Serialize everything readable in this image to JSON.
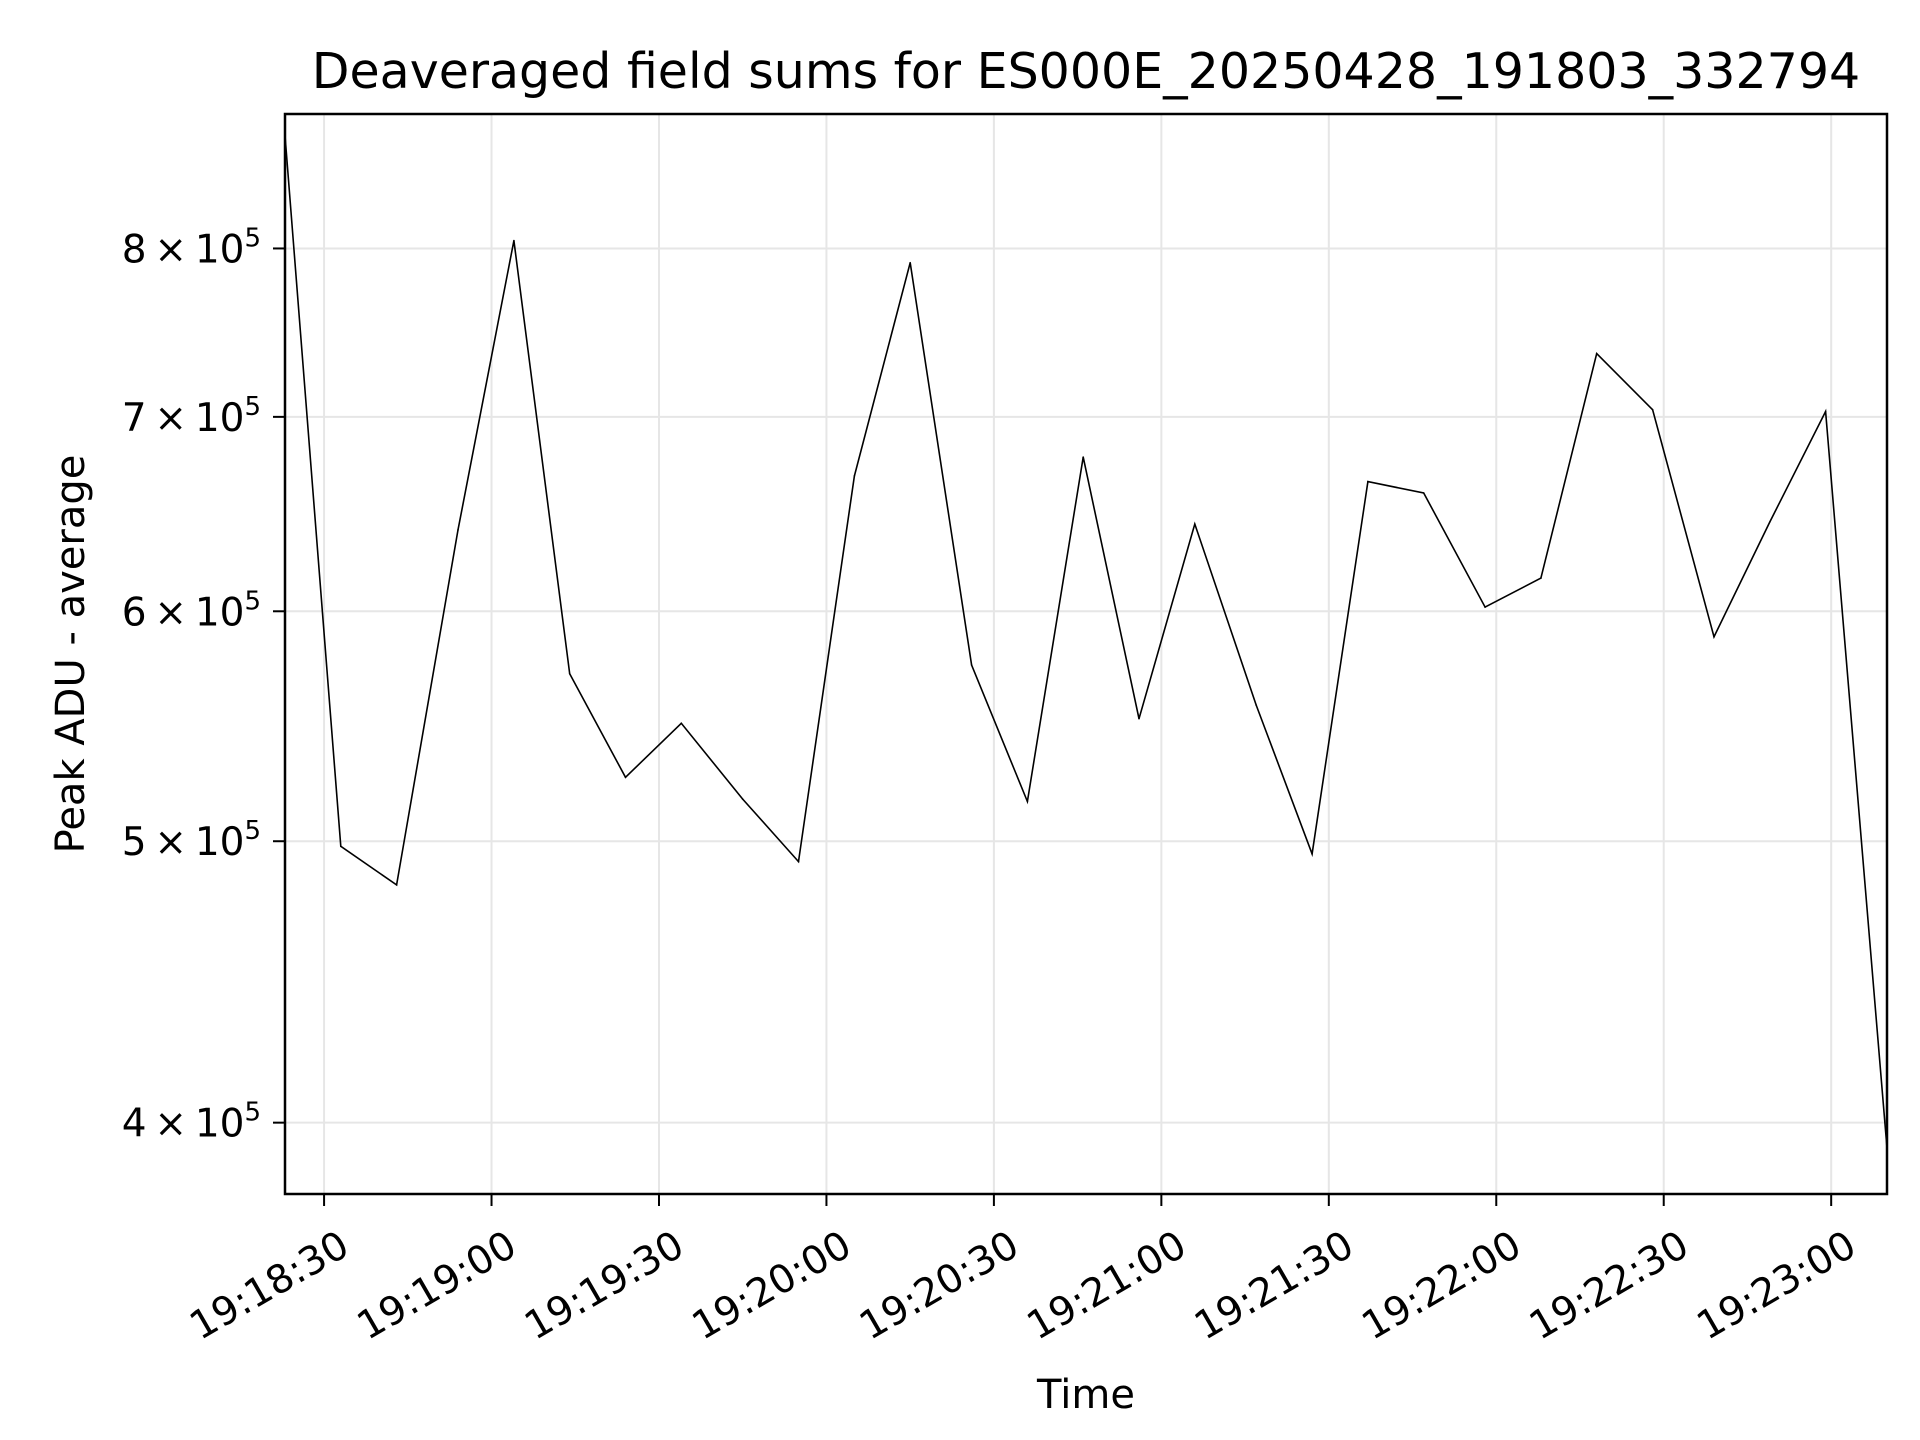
{
  "chart_data": {
    "type": "line",
    "title": "Deaveraged field sums for ES000E_20250428_191803_332794",
    "xlabel": "Time",
    "ylabel": "Peak ADU - average",
    "yscale": "log",
    "grid": true,
    "line_color": "#000000",
    "grid_color": "#e6e6e6",
    "xlim": [
      "19:18:23",
      "19:23:10"
    ],
    "ylim": [
      378000,
      890000
    ],
    "x_ticks": [
      "19:18:30",
      "19:19:00",
      "19:19:30",
      "19:20:00",
      "19:20:30",
      "19:21:00",
      "19:21:30",
      "19:22:00",
      "19:22:30",
      "19:23:00"
    ],
    "y_ticks": [
      {
        "value": 400000,
        "mantissa": "4",
        "base": "10",
        "exp": "5"
      },
      {
        "value": 500000,
        "mantissa": "5",
        "base": "10",
        "exp": "5"
      },
      {
        "value": 600000,
        "mantissa": "6",
        "base": "10",
        "exp": "5"
      },
      {
        "value": 700000,
        "mantissa": "7",
        "base": "10",
        "exp": "5"
      },
      {
        "value": 800000,
        "mantissa": "8",
        "base": "10",
        "exp": "5"
      }
    ],
    "series": [
      {
        "x": [
          "19:18:23",
          "19:18:33",
          "19:18:43",
          "19:18:54",
          "19:19:04",
          "19:19:14",
          "19:19:24",
          "19:19:34",
          "19:19:45",
          "19:19:55",
          "19:20:05",
          "19:20:15",
          "19:20:26",
          "19:20:36",
          "19:20:46",
          "19:20:56",
          "19:21:06",
          "19:21:17",
          "19:21:27",
          "19:21:37",
          "19:21:47",
          "19:21:58",
          "19:22:08",
          "19:22:18",
          "19:22:28",
          "19:22:39",
          "19:22:49",
          "19:22:59",
          "19:23:10"
        ],
        "y": [
          875000,
          498000,
          483000,
          640000,
          805000,
          571000,
          526000,
          549000,
          517000,
          492000,
          668000,
          791000,
          575000,
          516000,
          678000,
          551000,
          643000,
          557000,
          495000,
          665000,
          659000,
          602000,
          616000,
          736000,
          704000,
          588000,
          644000,
          703000,
          392000
        ]
      }
    ]
  }
}
